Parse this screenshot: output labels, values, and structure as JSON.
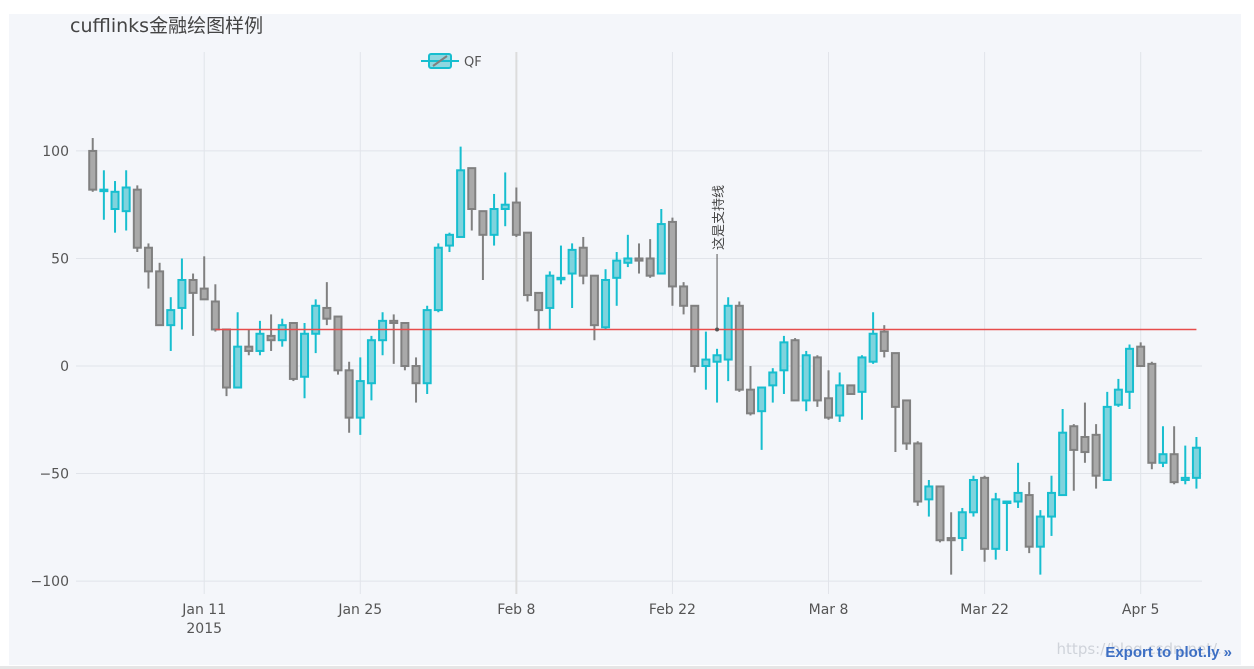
{
  "chart_data": {
    "type": "candlestick",
    "title": "cufflinks金融绘图样例",
    "legend": {
      "entries": [
        "QF"
      ],
      "placement": "top"
    },
    "colors": {
      "increasing": "#17becf",
      "decreasing": "#808080",
      "support": "#e74c4c",
      "grid": "#e1e4ea",
      "spike": "#dcdcdc"
    },
    "x_start": "2015-01-01",
    "x_ticks": [
      {
        "day": 10,
        "label": "Jan 11",
        "sublabel": "2015"
      },
      {
        "day": 24,
        "label": "Jan 25"
      },
      {
        "day": 38,
        "label": "Feb 8"
      },
      {
        "day": 52,
        "label": "Feb 22"
      },
      {
        "day": 66,
        "label": "Mar 8"
      },
      {
        "day": 80,
        "label": "Mar 22"
      },
      {
        "day": 94,
        "label": "Apr 5"
      }
    ],
    "y_ticks": [
      100,
      50,
      0,
      -50,
      -100
    ],
    "y_tick_labels": [
      "100",
      "50",
      "0",
      "−50",
      "−100"
    ],
    "xlim": [
      -1.5,
      99.5
    ],
    "ylim": [
      -106,
      146
    ],
    "grid": true,
    "support_line": {
      "value": 17,
      "from_day": 11,
      "to_day": 99
    },
    "spike_line_day": 38,
    "annotation": {
      "text": "这是支持线",
      "day": 56,
      "value": 17
    },
    "ohlc": [
      [
        100,
        106,
        81,
        82
      ],
      [
        82,
        91,
        68,
        82
      ],
      [
        73,
        86,
        62,
        81
      ],
      [
        72,
        91,
        63,
        83
      ],
      [
        82,
        84,
        53,
        55
      ],
      [
        55,
        57,
        36,
        44
      ],
      [
        44,
        48,
        19,
        19
      ],
      [
        19,
        32,
        7,
        26
      ],
      [
        27,
        50,
        17,
        40
      ],
      [
        40,
        43,
        14,
        34
      ],
      [
        36,
        51,
        31,
        31
      ],
      [
        30,
        38,
        16,
        17
      ],
      [
        17,
        17,
        -14,
        -10
      ],
      [
        -10,
        25,
        -10,
        9
      ],
      [
        9,
        17,
        5,
        7
      ],
      [
        7,
        21,
        5,
        15
      ],
      [
        14,
        24,
        7,
        12
      ],
      [
        12,
        22,
        9,
        19
      ],
      [
        20,
        20,
        -7,
        -6
      ],
      [
        -5,
        20,
        -15,
        15
      ],
      [
        15,
        31,
        6,
        28
      ],
      [
        27,
        39,
        19,
        22
      ],
      [
        23,
        23,
        -4,
        -2
      ],
      [
        -2,
        2,
        -31,
        -24
      ],
      [
        -24,
        4,
        -32,
        -7
      ],
      [
        -8,
        14,
        -16,
        12
      ],
      [
        12,
        25,
        5,
        21
      ],
      [
        21,
        24,
        1,
        20
      ],
      [
        20,
        20,
        -2,
        0
      ],
      [
        0,
        4,
        -17,
        -8
      ],
      [
        -8,
        28,
        -13,
        26
      ],
      [
        26,
        57,
        25,
        55
      ],
      [
        56,
        62,
        53,
        61
      ],
      [
        60,
        102,
        60,
        91
      ],
      [
        92,
        92,
        63,
        73
      ],
      [
        72,
        72,
        40,
        61
      ],
      [
        61,
        80,
        56,
        73
      ],
      [
        73,
        90,
        65,
        75
      ],
      [
        76,
        83,
        60,
        61
      ],
      [
        62,
        62,
        30,
        33
      ],
      [
        34,
        34,
        17,
        26
      ],
      [
        27,
        44,
        17,
        42
      ],
      [
        41,
        56,
        38,
        41
      ],
      [
        43,
        57,
        27,
        54
      ],
      [
        55,
        60,
        38,
        42
      ],
      [
        42,
        42,
        12,
        19
      ],
      [
        18,
        45,
        17,
        40
      ],
      [
        41,
        53,
        28,
        49
      ],
      [
        48,
        61,
        46,
        50
      ],
      [
        50,
        57,
        43,
        49
      ],
      [
        50,
        59,
        41,
        42
      ],
      [
        43,
        73,
        43,
        66
      ],
      [
        67,
        69,
        28,
        37
      ],
      [
        37,
        39,
        24,
        28
      ],
      [
        28,
        28,
        -3,
        0
      ],
      [
        0,
        16,
        -11,
        3
      ],
      [
        2,
        8,
        -17,
        5
      ],
      [
        3,
        32,
        -7,
        28
      ],
      [
        28,
        30,
        -12,
        -11
      ],
      [
        -11,
        0,
        -23,
        -22
      ],
      [
        -21,
        -10,
        -39,
        -10
      ],
      [
        -9,
        -1,
        -17,
        -3
      ],
      [
        -2,
        14,
        -13,
        11
      ],
      [
        12,
        13,
        -15,
        -16
      ],
      [
        -16,
        7,
        -21,
        5
      ],
      [
        4,
        5,
        -19,
        -16
      ],
      [
        -15,
        -2,
        -25,
        -24
      ],
      [
        -23,
        -3,
        -26,
        -9
      ],
      [
        -9,
        -10,
        -12,
        -13
      ],
      [
        -12,
        5,
        -25,
        4
      ],
      [
        2,
        25,
        1,
        15
      ],
      [
        16,
        19,
        4,
        7
      ],
      [
        6,
        6,
        -40,
        -19
      ],
      [
        -16,
        -18,
        -39,
        -36
      ],
      [
        -36,
        -35,
        -65,
        -63
      ],
      [
        -62,
        -53,
        -70,
        -56
      ],
      [
        -56,
        -56,
        -82,
        -81
      ],
      [
        -80,
        -68,
        -97,
        -81
      ],
      [
        -80,
        -66,
        -86,
        -68
      ],
      [
        -68,
        -51,
        -70,
        -53
      ],
      [
        -52,
        -51,
        -91,
        -85
      ],
      [
        -85,
        -59,
        -90,
        -62
      ],
      [
        -63,
        -63,
        -86,
        -63
      ],
      [
        -63,
        -45,
        -66,
        -59
      ],
      [
        -60,
        -54,
        -87,
        -84
      ],
      [
        -84,
        -67,
        -97,
        -70
      ],
      [
        -70,
        -51,
        -79,
        -59
      ],
      [
        -60,
        -20,
        -60,
        -31
      ],
      [
        -28,
        -27,
        -58,
        -39
      ],
      [
        -33,
        -17,
        -45,
        -40
      ],
      [
        -32,
        -27,
        -57,
        -51
      ],
      [
        -53,
        -12,
        -53,
        -19
      ],
      [
        -18,
        -6,
        -19,
        -11
      ],
      [
        -12,
        10,
        -20,
        8
      ],
      [
        9,
        11,
        0,
        0
      ],
      [
        1,
        2,
        -48,
        -45
      ],
      [
        -45,
        -28,
        -47,
        -41
      ],
      [
        -41,
        -28,
        -55,
        -54
      ],
      [
        -53,
        -37,
        -55,
        -52
      ],
      [
        -52,
        -33,
        -57,
        -38
      ]
    ]
  },
  "footer": {
    "export_label": "Export to plot.ly »",
    "watermark": "https://blog.csdn.net/…"
  }
}
